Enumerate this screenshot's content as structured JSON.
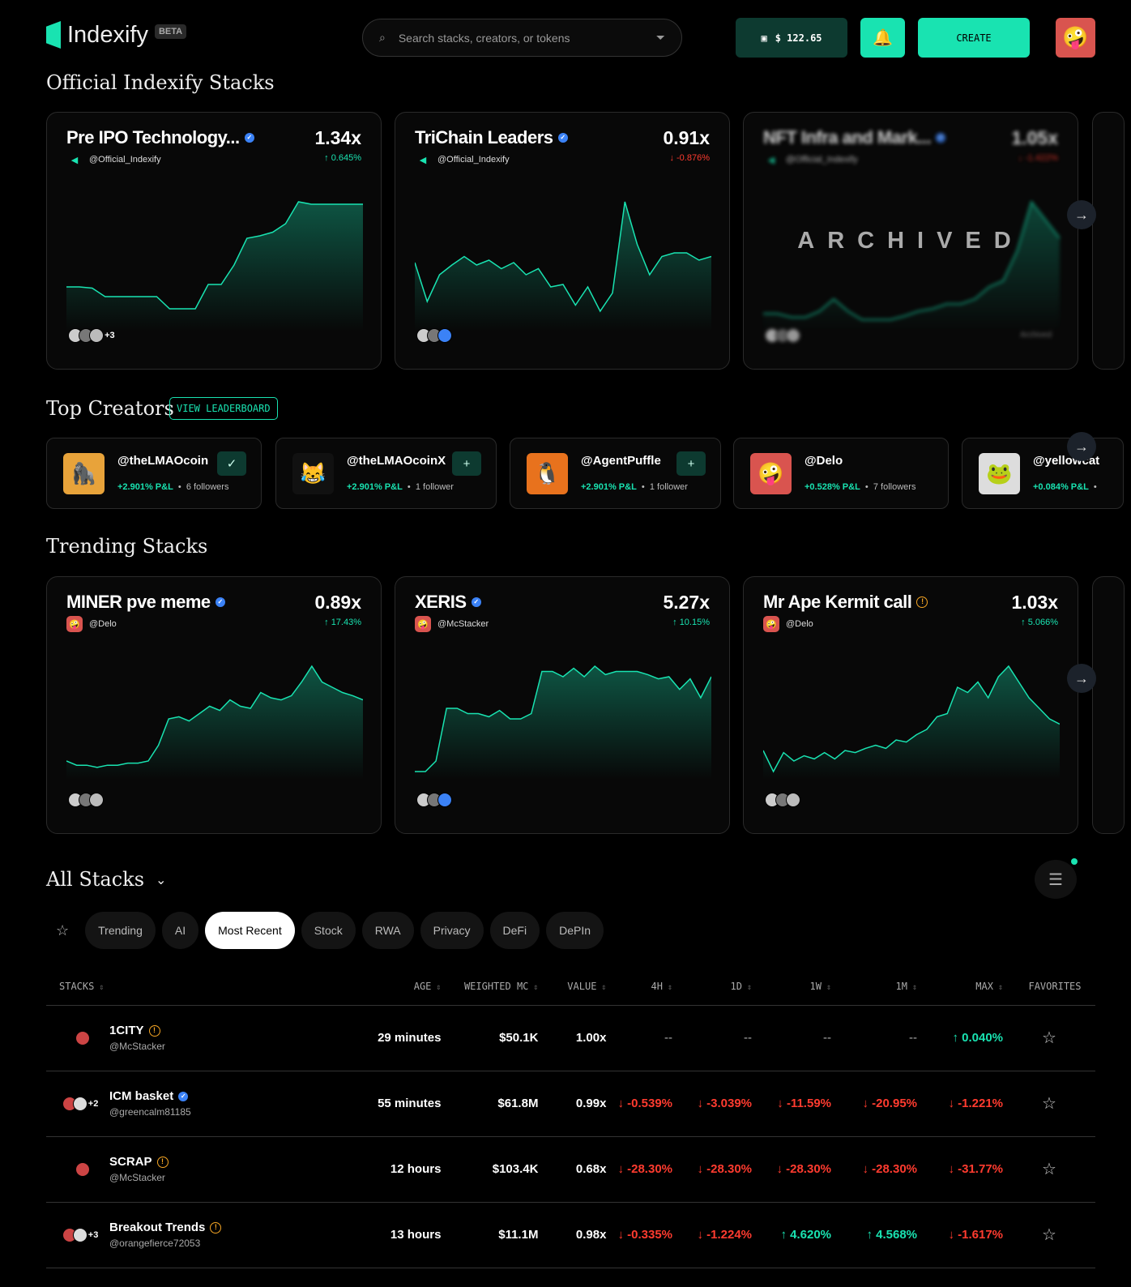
{
  "header": {
    "brand": "Indexify",
    "badge": "BETA",
    "search_placeholder": "Search stacks, creators, or tokens",
    "balance": "$ 122.65",
    "create_label": "CREATE",
    "avatar": "🤪"
  },
  "colors": {
    "accent": "#19e3b1",
    "negative": "#ff3b2f",
    "verified": "#3b82f6",
    "warning": "#f5a524"
  },
  "official": {
    "title": "Official Indexify Stacks",
    "cards": [
      {
        "name": "Pre IPO Technology...",
        "badge": "verified",
        "creator": "@Official_Indexify",
        "value": "1.34x",
        "change": "0.645%",
        "dir": "up",
        "tokens_more": "+3",
        "spark": [
          30,
          30,
          29,
          22,
          22,
          22,
          22,
          22,
          12,
          12,
          12,
          32,
          32,
          48,
          70,
          72,
          75,
          82,
          100,
          98,
          98,
          98,
          98,
          98
        ]
      },
      {
        "name": "TriChain Leaders",
        "badge": "verified",
        "creator": "@Official_Indexify",
        "value": "0.91x",
        "change": "-0.876%",
        "dir": "down",
        "tokens_more": "",
        "spark": [
          50,
          18,
          40,
          48,
          55,
          48,
          52,
          45,
          50,
          40,
          45,
          30,
          32,
          15,
          30,
          10,
          25,
          100,
          65,
          40,
          55,
          58,
          58,
          52,
          55
        ]
      },
      {
        "name": "NFT Infra and Mark...",
        "badge": "verified",
        "creator": "@Official_Indexify",
        "value": "1.05x",
        "change": "-1.422%",
        "dir": "down",
        "tokens_more": "",
        "archived_label": "ARCHIVED",
        "footer": "Archived",
        "spark": [
          8,
          8,
          5,
          5,
          10,
          20,
          10,
          3,
          3,
          3,
          6,
          10,
          12,
          16,
          16,
          20,
          30,
          35,
          60,
          100,
          85,
          70
        ]
      }
    ]
  },
  "creators": {
    "title": "Top Creators",
    "leaderboard_label": "VIEW LEADERBOARD",
    "items": [
      {
        "handle": "@theLMAOcoin",
        "pnl": "+2.901% P&L",
        "followers": "6 followers",
        "following": true,
        "avatar": "🦍",
        "bg": "#e8a33a"
      },
      {
        "handle": "@theLMAOcoinX",
        "pnl": "+2.901% P&L",
        "followers": "1 follower",
        "following": false,
        "avatar": "😹",
        "bg": "#111"
      },
      {
        "handle": "@AgentPuffle",
        "pnl": "+2.901% P&L",
        "followers": "1 follower",
        "following": false,
        "avatar": "🐧",
        "bg": "#e8721d"
      },
      {
        "handle": "@Delo",
        "pnl": "+0.528% P&L",
        "followers": "7 followers",
        "avatar": "🤪",
        "bg": "#d9544f"
      },
      {
        "handle": "@yellowcat",
        "pnl": "+0.084% P&L",
        "followers": "",
        "avatar": "🐸",
        "bg": "#ddd"
      }
    ]
  },
  "trending": {
    "title": "Trending Stacks",
    "cards": [
      {
        "name": "MINER pve meme",
        "badge": "verified",
        "creator": "@Delo",
        "value": "0.89x",
        "change": "17.43%",
        "dir": "up",
        "spark": [
          10,
          6,
          6,
          4,
          6,
          6,
          8,
          8,
          10,
          25,
          50,
          52,
          48,
          55,
          62,
          58,
          68,
          62,
          60,
          75,
          70,
          68,
          72,
          85,
          100,
          85,
          80,
          75,
          72,
          68
        ]
      },
      {
        "name": "XERIS",
        "badge": "verified",
        "creator": "@McStacker",
        "value": "5.27x",
        "change": "10.15%",
        "dir": "up",
        "spark": [
          0,
          0,
          10,
          60,
          60,
          55,
          55,
          52,
          58,
          50,
          50,
          55,
          95,
          95,
          90,
          98,
          90,
          100,
          92,
          95,
          95,
          95,
          92,
          88,
          90,
          78,
          88,
          70,
          90
        ]
      },
      {
        "name": "Mr Ape Kermit call",
        "badge": "warning",
        "creator": "@Delo",
        "value": "1.03x",
        "change": "5.066%",
        "dir": "up",
        "spark": [
          20,
          0,
          18,
          10,
          15,
          12,
          18,
          12,
          20,
          18,
          22,
          25,
          22,
          30,
          28,
          35,
          40,
          52,
          55,
          80,
          75,
          85,
          70,
          90,
          100,
          85,
          70,
          60,
          50,
          45
        ]
      }
    ]
  },
  "all": {
    "title": "All Stacks",
    "tabs": [
      "Trending",
      "AI",
      "Most Recent",
      "Stock",
      "RWA",
      "Privacy",
      "DeFi",
      "DePIn"
    ],
    "active_tab": "Most Recent",
    "columns": [
      "STACKS",
      "AGE",
      "WEIGHTED MC",
      "VALUE",
      "4H",
      "1D",
      "1W",
      "1M",
      "MAX",
      "FAVORITES"
    ],
    "rows": [
      {
        "name": "1CITY",
        "badge": "warning",
        "creator": "@McStacker",
        "more": "",
        "age": "29 minutes",
        "mc": "$50.1K",
        "value": "1.00x",
        "h4": "--",
        "d1": "--",
        "w1": "--",
        "m1": "--",
        "max": "0.040%",
        "dirs": [
          "",
          "",
          "",
          "",
          "up"
        ]
      },
      {
        "name": "ICM basket",
        "badge": "verified",
        "creator": "@greencalm81185",
        "more": "+2",
        "age": "55 minutes",
        "mc": "$61.8M",
        "value": "0.99x",
        "h4": "-0.539%",
        "d1": "-3.039%",
        "w1": "-11.59%",
        "m1": "-20.95%",
        "max": "-1.221%",
        "dirs": [
          "down",
          "down",
          "down",
          "down",
          "down"
        ]
      },
      {
        "name": "SCRAP",
        "badge": "warning",
        "creator": "@McStacker",
        "more": "",
        "age": "12 hours",
        "mc": "$103.4K",
        "value": "0.68x",
        "h4": "-28.30%",
        "d1": "-28.30%",
        "w1": "-28.30%",
        "m1": "-28.30%",
        "max": "-31.77%",
        "dirs": [
          "down",
          "down",
          "down",
          "down",
          "down"
        ]
      },
      {
        "name": "Breakout Trends",
        "badge": "warning",
        "creator": "@orangefierce72053",
        "more": "+3",
        "age": "13 hours",
        "mc": "$11.1M",
        "value": "0.98x",
        "h4": "-0.335%",
        "d1": "-1.224%",
        "w1": "4.620%",
        "m1": "4.568%",
        "max": "-1.617%",
        "dirs": [
          "down",
          "down",
          "up",
          "up",
          "down"
        ]
      }
    ]
  }
}
